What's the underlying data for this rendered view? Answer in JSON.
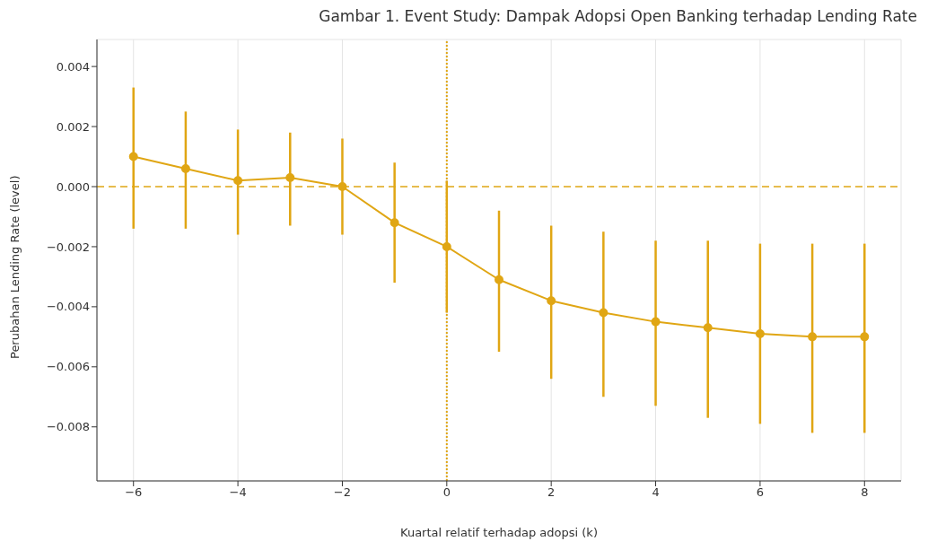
{
  "chart_data": {
    "type": "line",
    "title": "Gambar 1. Event Study: Dampak Adopsi Open Banking terhadap Lending Rate",
    "xlabel": "Kuartal relatif terhadap adopsi (k)",
    "ylabel": "Perubahan Lending Rate (level)",
    "x": [
      -6,
      -5,
      -4,
      -3,
      -2,
      -1,
      0,
      1,
      2,
      3,
      4,
      5,
      6,
      7,
      8
    ],
    "series": [
      {
        "color": "#e0a614",
        "values": [
          0.001,
          0.0006,
          0.0002,
          0.0003,
          0,
          -0.0012,
          -0.002,
          -0.0031,
          -0.0038,
          -0.0042,
          -0.0045,
          -0.0047,
          -0.0049,
          -0.005,
          -0.005
        ],
        "errors": [
          [
            -0.0014,
            0.0033
          ],
          [
            -0.0014,
            0.0025
          ],
          [
            -0.0016,
            0.0019
          ],
          [
            -0.0013,
            0.0018
          ],
          [
            -0.0016,
            0.0016
          ],
          [
            -0.0032,
            0.0008
          ],
          [
            -0.0042,
            0.0002
          ],
          [
            -0.0055,
            -0.0008
          ],
          [
            -0.0064,
            -0.0013
          ],
          [
            -0.007,
            -0.0015
          ],
          [
            -0.0073,
            -0.0018
          ],
          [
            -0.0077,
            -0.0018
          ],
          [
            -0.0079,
            -0.0019
          ],
          [
            -0.0082,
            -0.0019
          ],
          [
            -0.0082,
            -0.0019
          ]
        ]
      }
    ],
    "xlim": [
      -6.7,
      8.7
    ],
    "xticks": [
      -6,
      -4,
      -2,
      0,
      2,
      4,
      6,
      8
    ],
    "ylim": [
      -0.0098,
      0.0049
    ],
    "yticks": [
      0.004,
      0.002,
      {
        "value": 0,
        "label": "0.000"
      },
      -0.002,
      -0.004,
      -0.006,
      -0.008
    ],
    "ref_lines": [
      {
        "axis": "y",
        "value": 0,
        "color": "#e0a614",
        "line_style": "dashed"
      },
      {
        "axis": "x",
        "value": 0,
        "color": "#e0a614",
        "line_style": "dotted"
      }
    ],
    "grid": true,
    "legend": false,
    "marker": "circle",
    "line_style": "solid"
  }
}
